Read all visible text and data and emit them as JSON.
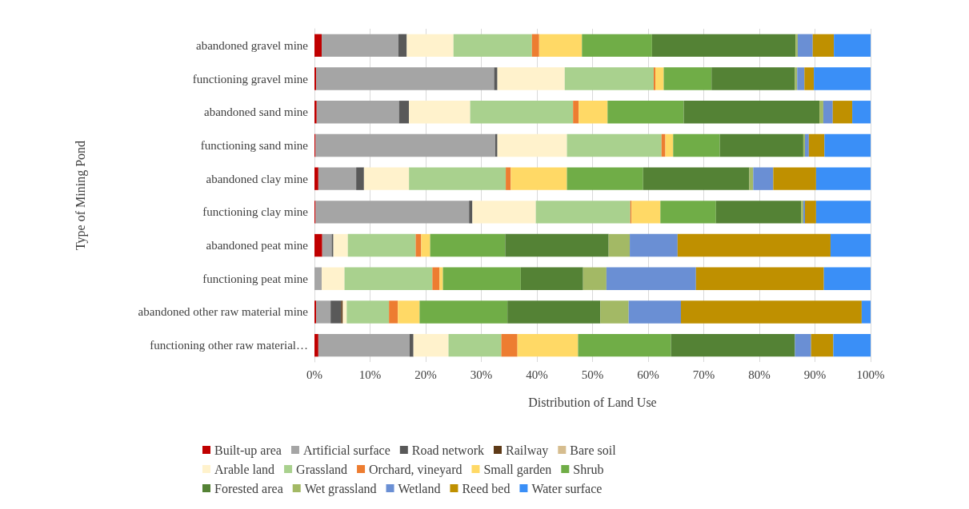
{
  "chart_data": {
    "type": "bar",
    "orientation": "horizontal",
    "stacked": true,
    "xlabel": "Distribution of Land Use",
    "ylabel": "Type of Mining Pond",
    "categories": [
      "abandoned gravel mine",
      "functioning gravel mine",
      "abandoned sand mine",
      "functioning sand mine",
      "abandoned clay mine",
      "functioning clay mine",
      "abandoned peat mine",
      "functioning peat mine",
      "abandoned other raw material mine",
      "functioning other raw material…"
    ],
    "series": [
      {
        "name": "Built-up area",
        "color": "#c00000",
        "values": [
          1.3,
          0.3,
          0.4,
          0.2,
          0.7,
          0.2,
          1.4,
          0,
          0.3,
          0.7
        ]
      },
      {
        "name": "Artificial surface",
        "color": "#a5a5a5",
        "values": [
          13.8,
          32.0,
          14.8,
          32.3,
          6.8,
          27.6,
          1.7,
          1.3,
          2.6,
          16.4
        ]
      },
      {
        "name": "Road network",
        "color": "#595959",
        "values": [
          1.5,
          0.6,
          1.8,
          0.4,
          1.4,
          0.6,
          0.3,
          0,
          1.9,
          0.7
        ]
      },
      {
        "name": "Railway",
        "color": "#5e3a17",
        "values": [
          0,
          0,
          0,
          0,
          0,
          0,
          0,
          0,
          0.3,
          0
        ]
      },
      {
        "name": "Bare soil",
        "color": "#d6bd8f",
        "values": [
          0,
          0,
          0,
          0,
          0,
          0,
          0,
          0,
          0,
          0
        ]
      },
      {
        "name": "Arable land",
        "color": "#fff2cc",
        "values": [
          8.4,
          12.1,
          11.0,
          12.5,
          8.1,
          11.4,
          2.6,
          4.1,
          0.7,
          6.3
        ]
      },
      {
        "name": "Grassland",
        "color": "#a9d18e",
        "values": [
          14.1,
          16.0,
          18.5,
          17.0,
          17.4,
          17.0,
          12.2,
          15.8,
          7.6,
          9.5
        ]
      },
      {
        "name": "Orchard, vineyard",
        "color": "#ed7d31",
        "values": [
          1.3,
          0.3,
          1.0,
          0.7,
          0.9,
          0.2,
          1.0,
          1.3,
          1.6,
          2.9
        ]
      },
      {
        "name": "Small garden",
        "color": "#ffd966",
        "values": [
          7.7,
          1.5,
          5.2,
          1.4,
          10.1,
          5.2,
          1.6,
          0.6,
          3.9,
          10.9
        ]
      },
      {
        "name": "Shrub",
        "color": "#70ad47",
        "values": [
          12.6,
          8.6,
          13.7,
          8.4,
          13.7,
          10.0,
          13.5,
          14.0,
          15.8,
          16.7
        ]
      },
      {
        "name": "Forested area",
        "color": "#548235",
        "values": [
          25.8,
          15.0,
          24.4,
          15.0,
          19.1,
          15.3,
          18.6,
          11.2,
          16.7,
          22.3
        ]
      },
      {
        "name": "Wet grassland",
        "color": "#a3b965",
        "values": [
          0.4,
          0.4,
          0.7,
          0.3,
          0.7,
          0.4,
          3.8,
          4.2,
          5.1,
          0
        ]
      },
      {
        "name": "Wetland",
        "color": "#6a8fd4",
        "values": [
          2.7,
          1.3,
          1.7,
          0.7,
          3.6,
          0.3,
          8.6,
          16.1,
          9.4,
          2.9
        ]
      },
      {
        "name": "Reed bed",
        "color": "#bf9000",
        "values": [
          3.8,
          1.7,
          3.5,
          2.8,
          7.7,
          2.0,
          27.5,
          23.0,
          32.5,
          4.0
        ]
      },
      {
        "name": "Water surface",
        "color": "#3a8ff7",
        "values": [
          6.6,
          10.2,
          3.3,
          8.3,
          9.8,
          9.8,
          7.2,
          8.4,
          1.6,
          6.7
        ]
      }
    ],
    "xlim": [
      0,
      100
    ],
    "xticks": [
      {
        "value": 0,
        "label": "0%"
      },
      {
        "value": 10,
        "label": "10%"
      },
      {
        "value": 20,
        "label": "20%"
      },
      {
        "value": 30,
        "label": "30%"
      },
      {
        "value": 40,
        "label": "40%"
      },
      {
        "value": 50,
        "label": "50%"
      },
      {
        "value": 60,
        "label": "60%"
      },
      {
        "value": 70,
        "label": "70%"
      },
      {
        "value": 80,
        "label": "80%"
      },
      {
        "value": 90,
        "label": "90%"
      },
      {
        "value": 100,
        "label": "100%"
      }
    ],
    "grid": "x",
    "legend": "bottom"
  }
}
